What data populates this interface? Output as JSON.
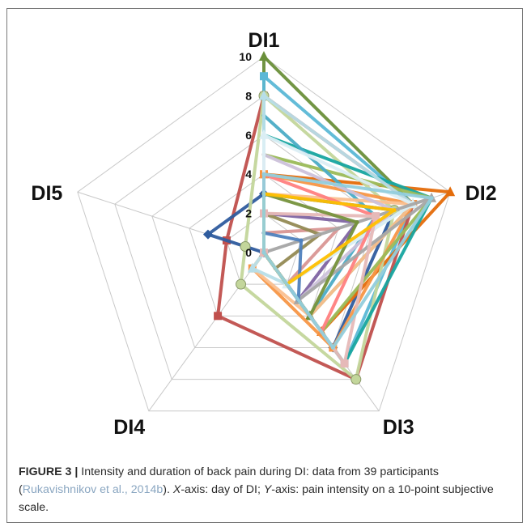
{
  "chart_data": {
    "type": "radar",
    "axes": [
      "DI1",
      "DI2",
      "DI3",
      "DI4",
      "DI5"
    ],
    "rlim": [
      0,
      10
    ],
    "tick_labels": [
      "0",
      "2",
      "4",
      "6",
      "8",
      "10"
    ],
    "grid": true,
    "legend": "none",
    "series": [
      {
        "color": "#6a8f3a",
        "marker": "triangle",
        "values": [
          10,
          8,
          4,
          0,
          0
        ]
      },
      {
        "color": "#5bb8d6",
        "marker": "square",
        "values": [
          9,
          8,
          7,
          0,
          0
        ]
      },
      {
        "color": "#c0504d",
        "marker": "square",
        "values": [
          8,
          8,
          8,
          4,
          2
        ]
      },
      {
        "color": "#2f5c9e",
        "marker": "diamond",
        "values": [
          3,
          7,
          6,
          0,
          3
        ]
      },
      {
        "color": "#e46c0a",
        "marker": "triangle",
        "values": [
          4,
          10,
          5,
          0,
          0
        ]
      },
      {
        "color": "#c3d69b",
        "marker": "circle",
        "values": [
          8,
          7,
          8,
          2,
          1
        ]
      },
      {
        "color": "#17a5a0",
        "marker": "none",
        "values": [
          6,
          9,
          7,
          0,
          0
        ]
      },
      {
        "color": "#f79646",
        "marker": "square",
        "values": [
          4,
          8,
          6,
          1,
          0
        ]
      },
      {
        "color": "#8064a2",
        "marker": "none",
        "values": [
          2,
          5,
          3,
          0,
          0
        ]
      },
      {
        "color": "#9bbb59",
        "marker": "none",
        "values": [
          5,
          9,
          5,
          0,
          0
        ]
      },
      {
        "color": "#4bacc6",
        "marker": "none",
        "values": [
          7,
          6,
          4,
          0,
          0
        ]
      },
      {
        "color": "#fac090",
        "marker": "none",
        "values": [
          3,
          8,
          4,
          1,
          0
        ]
      },
      {
        "color": "#b7dee8",
        "marker": "triangle",
        "values": [
          8,
          8,
          2,
          1,
          0
        ]
      },
      {
        "color": "#d99694",
        "marker": "none",
        "values": [
          1,
          4,
          2,
          0,
          0
        ]
      },
      {
        "color": "#ccc1da",
        "marker": "none",
        "values": [
          5,
          7,
          3,
          0,
          0
        ]
      },
      {
        "color": "#dbeef4",
        "marker": "triangle",
        "values": [
          6,
          8,
          2,
          0,
          0
        ]
      },
      {
        "color": "#948a54",
        "marker": "none",
        "values": [
          2,
          3,
          1,
          0,
          0
        ]
      },
      {
        "color": "#ff8080",
        "marker": "none",
        "values": [
          4,
          6,
          5,
          0,
          0
        ]
      },
      {
        "color": "#a6a6a6",
        "marker": "triangle",
        "values": [
          0,
          9,
          3,
          0,
          0
        ]
      },
      {
        "color": "#e6b9b8",
        "marker": "square",
        "values": [
          2,
          6,
          7,
          0,
          0
        ]
      },
      {
        "color": "#76923c",
        "marker": "none",
        "values": [
          3,
          5,
          4,
          0,
          0
        ]
      },
      {
        "color": "#4f81bd",
        "marker": "none",
        "values": [
          1,
          2,
          3,
          0,
          0
        ]
      },
      {
        "color": "#ffc000",
        "marker": "none",
        "values": [
          3,
          7,
          2,
          0,
          0
        ]
      },
      {
        "color": "#92cddc",
        "marker": "none",
        "values": [
          4,
          9,
          6,
          0,
          0
        ]
      }
    ]
  },
  "caption": {
    "figure": "FIGURE 3 |",
    "text_1": " Intensity and duration of back pain during DI: data from 39 participants (",
    "citation": "Rukavishnikov et al., 2014b",
    "text_2": "). ",
    "x_var": "X",
    "text_3": "-axis: day of DI; ",
    "y_var": "Y",
    "text_4": "-axis: pain intensity on a 10-point subjective scale."
  }
}
